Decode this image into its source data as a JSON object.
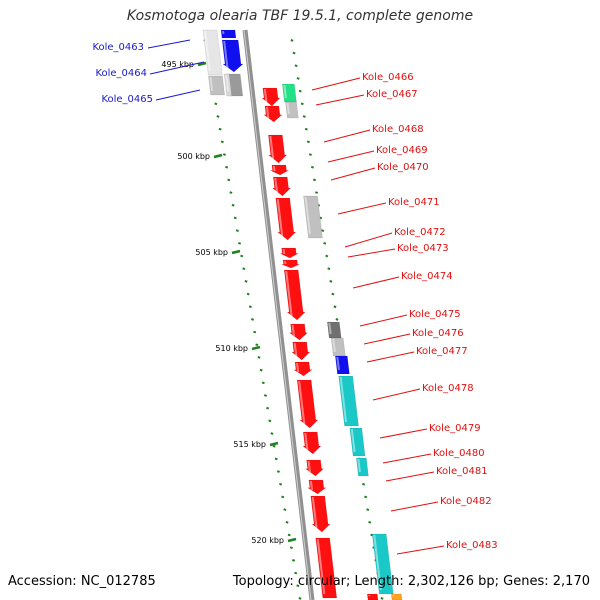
{
  "title": "Kosmotoga olearia TBF 19.5.1, complete genome",
  "accession_text": "Accession: NC_012785",
  "stats_text": "Topology: circular; Length: 2,302,126 bp; Genes: 2,170",
  "colors": {
    "red": "#ff1010",
    "blue": "#1010ee",
    "gray": "#c0c0c0",
    "darkgray": "#707070",
    "cyan": "#1bc8c8",
    "green": "#22e088",
    "orange": "#ffa020",
    "tick": "#208020"
  },
  "kbp_ticks": [
    "495 kbp",
    "500 kbp",
    "505 kbp",
    "510 kbp",
    "515 kbp",
    "520 kbp"
  ],
  "genes": [
    {
      "name": "Kole_0463",
      "side": "left",
      "color": "blue"
    },
    {
      "name": "Kole_0464",
      "side": "left",
      "color": "blue"
    },
    {
      "name": "Kole_0465",
      "side": "left",
      "color": "blue"
    },
    {
      "name": "Kole_0466",
      "side": "right",
      "color": "red"
    },
    {
      "name": "Kole_0467",
      "side": "right",
      "color": "red"
    },
    {
      "name": "Kole_0468",
      "side": "right",
      "color": "red"
    },
    {
      "name": "Kole_0469",
      "side": "right",
      "color": "red"
    },
    {
      "name": "Kole_0470",
      "side": "right",
      "color": "red"
    },
    {
      "name": "Kole_0471",
      "side": "right",
      "color": "red"
    },
    {
      "name": "Kole_0472",
      "side": "right",
      "color": "red"
    },
    {
      "name": "Kole_0473",
      "side": "right",
      "color": "red"
    },
    {
      "name": "Kole_0474",
      "side": "right",
      "color": "red"
    },
    {
      "name": "Kole_0475",
      "side": "right",
      "color": "red"
    },
    {
      "name": "Kole_0476",
      "side": "right",
      "color": "red"
    },
    {
      "name": "Kole_0477",
      "side": "right",
      "color": "red"
    },
    {
      "name": "Kole_0478",
      "side": "right",
      "color": "red"
    },
    {
      "name": "Kole_0479",
      "side": "right",
      "color": "red"
    },
    {
      "name": "Kole_0480",
      "side": "right",
      "color": "red"
    },
    {
      "name": "Kole_0481",
      "side": "right",
      "color": "red"
    },
    {
      "name": "Kole_0482",
      "side": "right",
      "color": "red"
    },
    {
      "name": "Kole_0483",
      "side": "right",
      "color": "red"
    }
  ]
}
